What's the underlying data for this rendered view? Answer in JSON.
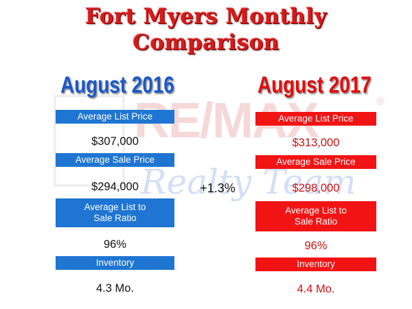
{
  "title": {
    "line1": "Fort Myers Monthly",
    "line2": "Comparison"
  },
  "change": "+1.3%",
  "left": {
    "heading": "August 2016",
    "avg_list_label": "Average List Price",
    "avg_list_value": "$307,000",
    "avg_sale_label": "Average Sale Price",
    "avg_sale_value": "$294,000",
    "ratio_label_1": "Average List to",
    "ratio_label_2": "Sale Ratio",
    "ratio_value": "96%",
    "inventory_label": "Inventory",
    "inventory_value": "4.3 Mo."
  },
  "right": {
    "heading": "August 2017",
    "avg_list_label": "Average List Price",
    "avg_list_value": "$313,000",
    "avg_sale_label": "Average Sale Price",
    "avg_sale_value": "$298,000",
    "ratio_label_1": "Average List to",
    "ratio_label_2": "Sale Ratio",
    "ratio_value": "96%",
    "inventory_label": "Inventory",
    "inventory_value": "4.4 Mo."
  },
  "watermark": {
    "brand": "RE/MAX",
    "script": "Realty Team",
    "registered": "®"
  },
  "colors": {
    "title_red": "#d71a1a",
    "blue": "#1f75d2",
    "red": "#f21414"
  }
}
